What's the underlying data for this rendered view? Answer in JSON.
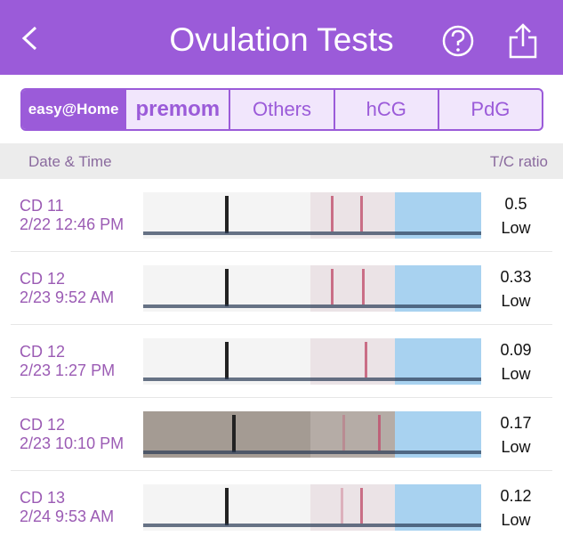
{
  "header": {
    "title": "Ovulation Tests"
  },
  "tabs": [
    "easy@Home",
    "premom",
    "Others",
    "hCG",
    "PdG"
  ],
  "table": {
    "columns": [
      "Date & Time",
      "T/C ratio"
    ],
    "rows": [
      {
        "cycle_day": "CD 11",
        "datetime": "2/22 12:46 PM",
        "ratio": "0.5",
        "level": "Low"
      },
      {
        "cycle_day": "CD 12",
        "datetime": "2/23 9:52 AM",
        "ratio": "0.33",
        "level": "Low"
      },
      {
        "cycle_day": "CD 12",
        "datetime": "2/23 1:27 PM",
        "ratio": "0.09",
        "level": "Low"
      },
      {
        "cycle_day": "CD 12",
        "datetime": "2/23 10:10 PM",
        "ratio": "0.17",
        "level": "Low"
      },
      {
        "cycle_day": "CD 13",
        "datetime": "2/24 9:53 AM",
        "ratio": "0.12",
        "level": "Low"
      }
    ]
  }
}
